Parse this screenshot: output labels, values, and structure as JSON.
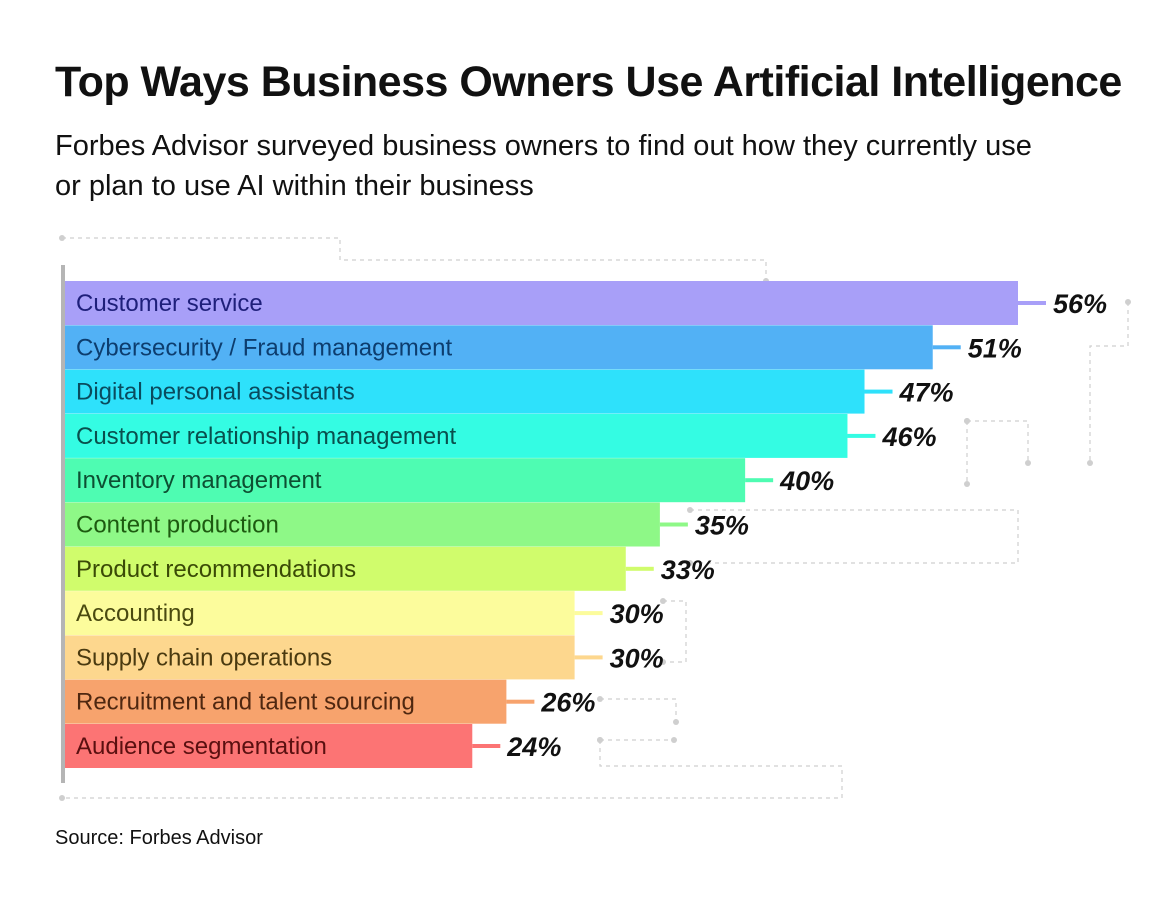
{
  "title": "Top Ways Business Owners Use Artificial Intelligence",
  "subtitle": "Forbes Advisor surveyed business owners to find out how they currently use or plan to use AI within their business",
  "source": "Source: Forbes Advisor",
  "chart_data": {
    "type": "bar",
    "orientation": "horizontal",
    "categories": [
      "Customer service",
      "Cybersecurity / Fraud management",
      "Digital personal assistants",
      "Customer relationship management",
      "Inventory management",
      "Content production",
      "Product recommendations",
      "Accounting",
      "Supply chain operations",
      "Recruitment and talent sourcing",
      "Audience segmentation"
    ],
    "values": [
      56,
      51,
      47,
      46,
      40,
      35,
      33,
      30,
      30,
      26,
      24
    ],
    "value_labels": [
      "56%",
      "51%",
      "47%",
      "46%",
      "40%",
      "35%",
      "33%",
      "30%",
      "30%",
      "26%",
      "24%"
    ],
    "bar_colors": [
      "#a89ff8",
      "#52b1f5",
      "#2ee1fb",
      "#34fce3",
      "#4efcb2",
      "#8ef887",
      "#d0fc6c",
      "#fcfc9c",
      "#fdd78e",
      "#f7a36d",
      "#fc7474"
    ],
    "label_colors": [
      "#1e1f7a",
      "#0d3d6e",
      "#0a4b5e",
      "#094f4d",
      "#0d4f32",
      "#1d5a10",
      "#3a4a06",
      "#4a4a10",
      "#4a3a10",
      "#4f2710",
      "#5a1010"
    ],
    "xlim": [
      0,
      56
    ],
    "grid": false,
    "legend": "none"
  }
}
